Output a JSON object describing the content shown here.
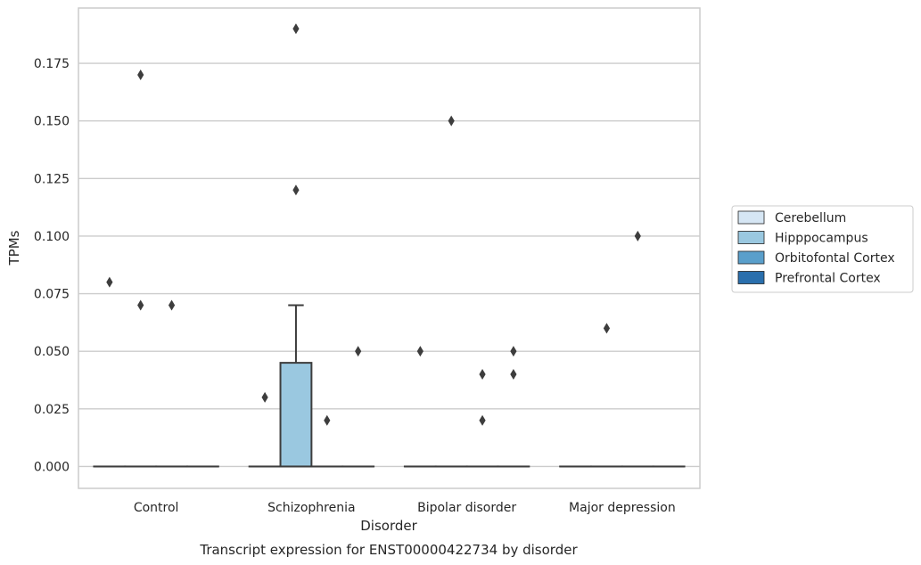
{
  "chart_data": {
    "type": "box",
    "title": "",
    "xlabel": "Disorder",
    "ylabel": "TPMs",
    "caption": "Transcript expression for ENST00000422734 by disorder",
    "categories": [
      "Control",
      "Schizophrenia",
      "Bipolar disorder",
      "Major depression"
    ],
    "ylim": [
      -0.0095,
      0.199
    ],
    "yticks": [
      "0.000",
      "0.025",
      "0.050",
      "0.075",
      "0.100",
      "0.125",
      "0.150",
      "0.175"
    ],
    "ytick_values": [
      0.0,
      0.025,
      0.05,
      0.075,
      0.1,
      0.125,
      0.15,
      0.175
    ],
    "grid": "horizontal",
    "legend_position": "center-right outside",
    "series": [
      {
        "name": "Cerebellum",
        "color": "#d6e6f4",
        "boxes": [
          {
            "category": "Control",
            "q1": 0,
            "median": 0,
            "q3": 0,
            "whisker_low": 0,
            "whisker_high": 0,
            "outliers": [
              0.08
            ]
          },
          {
            "category": "Schizophrenia",
            "q1": 0,
            "median": 0,
            "q3": 0,
            "whisker_low": 0,
            "whisker_high": 0,
            "outliers": [
              0.03
            ]
          },
          {
            "category": "Bipolar disorder",
            "q1": 0,
            "median": 0,
            "q3": 0,
            "whisker_low": 0,
            "whisker_high": 0,
            "outliers": [
              0.05
            ]
          },
          {
            "category": "Major depression",
            "q1": 0,
            "median": 0,
            "q3": 0,
            "whisker_low": 0,
            "whisker_high": 0,
            "outliers": []
          }
        ]
      },
      {
        "name": "Hipppocampus",
        "color": "#9ac8e0",
        "boxes": [
          {
            "category": "Control",
            "q1": 0,
            "median": 0,
            "q3": 0,
            "whisker_low": 0,
            "whisker_high": 0,
            "outliers": [
              0.17,
              0.07
            ]
          },
          {
            "category": "Schizophrenia",
            "q1": 0,
            "median": 0,
            "q3": 0.045,
            "whisker_low": 0,
            "whisker_high": 0.07,
            "outliers": [
              0.19,
              0.12
            ]
          },
          {
            "category": "Bipolar disorder",
            "q1": 0,
            "median": 0,
            "q3": 0,
            "whisker_low": 0,
            "whisker_high": 0,
            "outliers": [
              0.15
            ]
          },
          {
            "category": "Major depression",
            "q1": 0,
            "median": 0,
            "q3": 0,
            "whisker_low": 0,
            "whisker_high": 0,
            "outliers": [
              0.06
            ]
          }
        ]
      },
      {
        "name": "Orbitofontal Cortex",
        "color": "#5a9fcb",
        "boxes": [
          {
            "category": "Control",
            "q1": 0,
            "median": 0,
            "q3": 0,
            "whisker_low": 0,
            "whisker_high": 0,
            "outliers": [
              0.07
            ]
          },
          {
            "category": "Schizophrenia",
            "q1": 0,
            "median": 0,
            "q3": 0,
            "whisker_low": 0,
            "whisker_high": 0,
            "outliers": [
              0.02
            ]
          },
          {
            "category": "Bipolar disorder",
            "q1": 0,
            "median": 0,
            "q3": 0,
            "whisker_low": 0,
            "whisker_high": 0,
            "outliers": [
              0.04,
              0.02
            ]
          },
          {
            "category": "Major depression",
            "q1": 0,
            "median": 0,
            "q3": 0,
            "whisker_low": 0,
            "whisker_high": 0,
            "outliers": [
              0.1
            ]
          }
        ]
      },
      {
        "name": "Prefrontal Cortex",
        "color": "#2a6fad",
        "boxes": [
          {
            "category": "Control",
            "q1": 0,
            "median": 0,
            "q3": 0,
            "whisker_low": 0,
            "whisker_high": 0,
            "outliers": []
          },
          {
            "category": "Schizophrenia",
            "q1": 0,
            "median": 0,
            "q3": 0,
            "whisker_low": 0,
            "whisker_high": 0,
            "outliers": [
              0.05
            ]
          },
          {
            "category": "Bipolar disorder",
            "q1": 0,
            "median": 0,
            "q3": 0,
            "whisker_low": 0,
            "whisker_high": 0,
            "outliers": [
              0.05,
              0.04
            ]
          },
          {
            "category": "Major depression",
            "q1": 0,
            "median": 0,
            "q3": 0,
            "whisker_low": 0,
            "whisker_high": 0,
            "outliers": []
          }
        ]
      }
    ]
  }
}
